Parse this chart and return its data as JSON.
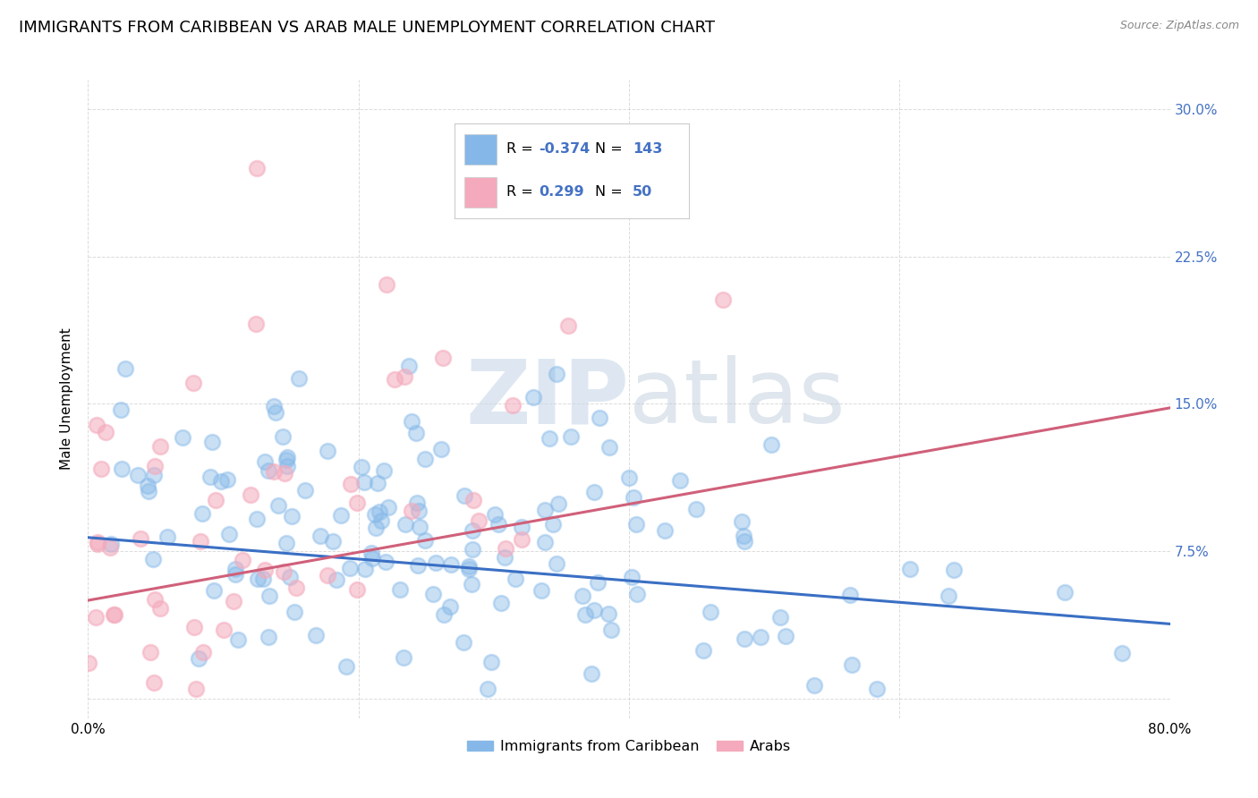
{
  "title": "IMMIGRANTS FROM CARIBBEAN VS ARAB MALE UNEMPLOYMENT CORRELATION CHART",
  "source": "Source: ZipAtlas.com",
  "ylabel": "Male Unemployment",
  "yticks": [
    0.0,
    0.075,
    0.15,
    0.225,
    0.3
  ],
  "ytick_labels": [
    "",
    "7.5%",
    "15.0%",
    "22.5%",
    "30.0%"
  ],
  "xlim": [
    0.0,
    0.8
  ],
  "ylim": [
    -0.01,
    0.315
  ],
  "watermark_zip": "ZIP",
  "watermark_atlas": "atlas",
  "legend_label1": "Immigrants from Caribbean",
  "legend_label2": "Arabs",
  "blue_color": "#85B8E8",
  "pink_color": "#F4AABC",
  "trend_blue": "#3A6FC4",
  "trend_pink": "#D0607A",
  "blue_trend_x": [
    0.0,
    0.8
  ],
  "blue_trend_y": [
    0.082,
    0.038
  ],
  "pink_trend_x": [
    0.0,
    0.8
  ],
  "pink_trend_y": [
    0.05,
    0.148
  ],
  "grid_color": "#CCCCCC",
  "background_color": "#FFFFFF",
  "title_fontsize": 13,
  "axis_label_fontsize": 11,
  "tick_fontsize": 11,
  "tick_color_right": "#4472C4",
  "legend_R1": "-0.374",
  "legend_N1": "143",
  "legend_R2": "0.299",
  "legend_N2": "50",
  "seed": 42
}
